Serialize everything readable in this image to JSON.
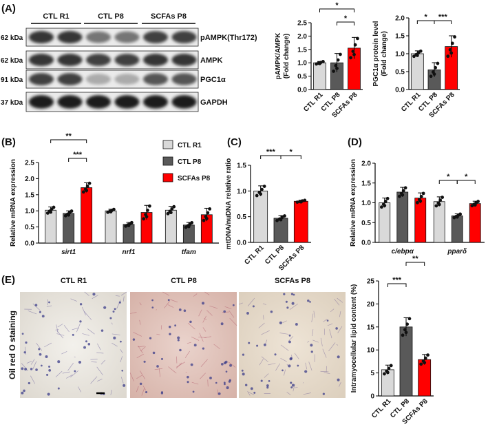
{
  "panel_labels": {
    "A": "(A)",
    "B": "(B)",
    "C": "(C)",
    "D": "(D)",
    "E": "(E)"
  },
  "groups": [
    "CTL R1",
    "CTL P8",
    "SCFAs P8"
  ],
  "colors": {
    "ctl_r1": "#d9d9d9",
    "ctl_p8": "#595959",
    "scfas_p8": "#ff0000",
    "oil_label": "#ec6a8c"
  },
  "blot": {
    "lanes": [
      "CTL R1",
      "CTL P8",
      "SCFAs P8"
    ],
    "rows": [
      {
        "kda": "62 kDa",
        "protein": "pAMPK(Thr172)",
        "level": [
          0.85,
          0.55,
          0.8
        ]
      },
      {
        "kda": "62 kDa",
        "protein": "AMPK",
        "level": [
          0.85,
          0.8,
          0.85
        ]
      },
      {
        "kda": "91 kDa",
        "protein": "PGC1α",
        "level": [
          0.8,
          0.3,
          0.7
        ]
      },
      {
        "kda": "37 kDa",
        "protein": "GAPDH",
        "level": [
          0.95,
          0.95,
          0.95
        ]
      }
    ]
  },
  "chart_data": [
    {
      "id": "A-pampk",
      "type": "bar",
      "categories": [
        "CTL R1",
        "CTL P8",
        "SCFAs P8"
      ],
      "values": [
        1.0,
        1.0,
        1.55
      ],
      "errors": [
        0.05,
        0.35,
        0.4
      ],
      "ylabel": "pAMPK/AMPK\n(Fold change)",
      "ylim": [
        0,
        2.5
      ],
      "yticks": [
        "0.0",
        "0.5",
        "1.0",
        "1.5",
        "2.0",
        "2.5"
      ],
      "significance": [
        {
          "pair": "CTL R1 vs SCFAs P8",
          "label": "*"
        },
        {
          "pair": "CTL P8 vs SCFAs P8",
          "label": "*"
        }
      ]
    },
    {
      "id": "A-pgc1a",
      "type": "bar",
      "categories": [
        "CTL R1",
        "CTL P8",
        "SCFAs P8"
      ],
      "values": [
        1.0,
        0.55,
        1.2
      ],
      "errors": [
        0.08,
        0.2,
        0.3
      ],
      "ylabel": "PGC1α protein level\n(Fold change)",
      "ylim": [
        0,
        2.0
      ],
      "yticks": [
        "0.0",
        "0.5",
        "1.0",
        "1.5",
        "2.0"
      ],
      "significance": [
        {
          "pair": "CTL R1 vs CTL P8",
          "label": "*"
        },
        {
          "pair": "CTL P8 vs SCFAs P8",
          "label": "***"
        }
      ]
    },
    {
      "id": "B",
      "type": "bar",
      "categories": [
        "sirt1",
        "nrf1",
        "tfam"
      ],
      "series": [
        {
          "name": "CTL R1",
          "values": [
            1.02,
            1.0,
            1.02
          ],
          "errors": [
            0.1,
            0.05,
            0.12
          ]
        },
        {
          "name": "CTL P8",
          "values": [
            0.92,
            0.58,
            0.56
          ],
          "errors": [
            0.08,
            0.06,
            0.08
          ]
        },
        {
          "name": "SCFAs P8",
          "values": [
            1.72,
            0.95,
            0.88
          ],
          "errors": [
            0.15,
            0.22,
            0.2
          ]
        }
      ],
      "ylabel": "Relative mRNA expression",
      "ylim": [
        0,
        2.5
      ],
      "yticks": [
        "0.0",
        "0.5",
        "1.0",
        "1.5",
        "2.0",
        "2.5"
      ],
      "significance": [
        {
          "pair": "sirt1 CTL R1 vs SCFAs P8",
          "label": "**"
        },
        {
          "pair": "sirt1 CTL P8 vs SCFAs P8",
          "label": "***"
        }
      ]
    },
    {
      "id": "C",
      "type": "bar",
      "categories": [
        "CTL R1",
        "CTL P8",
        "SCFAs P8"
      ],
      "values": [
        1.0,
        0.47,
        0.8
      ],
      "errors": [
        0.1,
        0.05,
        0.02
      ],
      "ylabel": "mtDNA/nuDNA relative ratio",
      "ylim": [
        0,
        1.5
      ],
      "yticks": [
        "0.0",
        "0.5",
        "1.0",
        "1.5"
      ],
      "significance": [
        {
          "pair": "CTL R1 vs CTL P8",
          "label": "***"
        },
        {
          "pair": "CTL P8 vs SCFAs P8",
          "label": "*"
        }
      ]
    },
    {
      "id": "D",
      "type": "bar",
      "categories": [
        "c/ebpα",
        "pparδ"
      ],
      "series": [
        {
          "name": "CTL R1",
          "values": [
            1.0,
            1.03
          ],
          "errors": [
            0.12,
            0.12
          ]
        },
        {
          "name": "CTL P8",
          "values": [
            1.27,
            0.67
          ],
          "errors": [
            0.12,
            0.05
          ]
        },
        {
          "name": "SCFAs P8",
          "values": [
            1.12,
            0.98
          ],
          "errors": [
            0.13,
            0.06
          ]
        }
      ],
      "ylabel": "Relative mRNA expression",
      "ylim": [
        0,
        2.0
      ],
      "yticks": [
        "0.0",
        "0.5",
        "1.0",
        "1.5",
        "2.0"
      ],
      "significance": [
        {
          "pair": "pparδ CTL R1 vs CTL P8",
          "label": "*"
        },
        {
          "pair": "pparδ CTL P8 vs SCFAs P8",
          "label": "*"
        }
      ]
    },
    {
      "id": "E",
      "type": "bar",
      "categories": [
        "CTL R1",
        "CTL P8",
        "SCFAs P8"
      ],
      "values": [
        5.7,
        15.0,
        7.9
      ],
      "errors": [
        1.0,
        2.0,
        1.1
      ],
      "ylabel": "Intramyocellular lipid content (%)",
      "ylim": [
        0,
        25
      ],
      "yticks": [
        "0",
        "5",
        "10",
        "15",
        "20",
        "25"
      ],
      "significance": [
        {
          "pair": "CTL R1 vs CTL P8",
          "label": "***"
        },
        {
          "pair": "CTL P8 vs SCFAs P8",
          "label": "**"
        }
      ]
    }
  ],
  "histology": {
    "stain_label": "Oil red O staining",
    "images": [
      "CTL R1",
      "CTL P8",
      "SCFAs P8"
    ]
  }
}
